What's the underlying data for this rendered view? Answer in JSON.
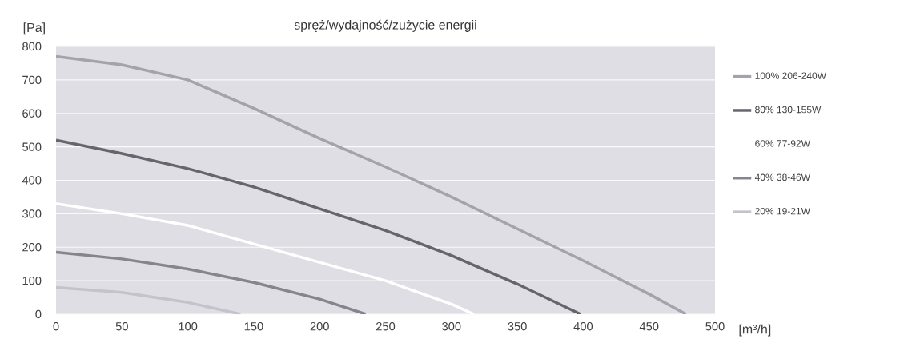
{
  "chart_data": {
    "type": "line",
    "title": "spręż/wydajność/zużycie energii",
    "xlabel": "[m³/h]",
    "ylabel": "[Pa]",
    "xlim": [
      0,
      500
    ],
    "xticks": [
      0,
      50,
      100,
      150,
      200,
      250,
      300,
      350,
      400,
      450,
      500
    ],
    "ylim": [
      0,
      800
    ],
    "yticks": [
      0,
      100,
      200,
      300,
      400,
      500,
      600,
      700,
      800
    ],
    "grid": "y",
    "legend": "right",
    "marker": "none",
    "series": [
      {
        "name": "100% 206-240W",
        "color": "#a3a3ab",
        "x": [
          0,
          50,
          100,
          150,
          200,
          250,
          300,
          350,
          400,
          450,
          478
        ],
        "values": [
          770,
          745,
          700,
          615,
          525,
          440,
          350,
          255,
          160,
          60,
          0
        ]
      },
      {
        "name": "80% 130-155W",
        "color": "#65656d",
        "x": [
          0,
          50,
          100,
          150,
          200,
          250,
          300,
          350,
          398
        ],
        "values": [
          520,
          480,
          435,
          380,
          315,
          250,
          175,
          90,
          0
        ]
      },
      {
        "name": "60% 77-92W",
        "color": "#ffffff",
        "x": [
          0,
          50,
          100,
          150,
          200,
          250,
          300,
          317
        ],
        "values": [
          330,
          300,
          265,
          210,
          155,
          100,
          30,
          0
        ]
      },
      {
        "name": "40% 38-46W",
        "color": "#85858d",
        "x": [
          0,
          50,
          100,
          150,
          200,
          235
        ],
        "values": [
          185,
          165,
          135,
          95,
          45,
          0
        ]
      },
      {
        "name": "20% 19-21W",
        "color": "#c3c3cb",
        "x": [
          0,
          50,
          100,
          140
        ],
        "values": [
          80,
          65,
          35,
          0
        ]
      }
    ]
  }
}
